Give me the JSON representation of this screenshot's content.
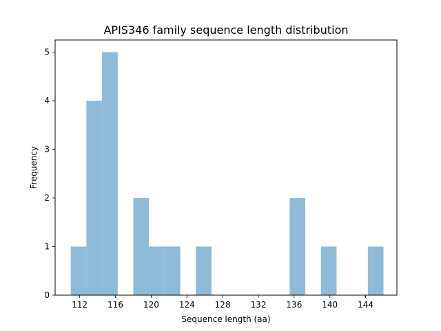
{
  "chart_data": {
    "type": "bar",
    "title": "APIS346 family sequence length distribution",
    "xlabel": "Sequence length (aa)",
    "ylabel": "Frequency",
    "xlim": [
      109.25,
      147.5
    ],
    "ylim": [
      0,
      5.25
    ],
    "xticks": [
      112,
      116,
      120,
      124,
      128,
      132,
      136,
      140,
      144
    ],
    "yticks": [
      0,
      1,
      2,
      3,
      4,
      5
    ],
    "grid": false,
    "bar_color": "#8fbbd9",
    "bins": [
      {
        "x0": 111.0,
        "x1": 112.75,
        "count": 1
      },
      {
        "x0": 112.75,
        "x1": 114.5,
        "count": 4
      },
      {
        "x0": 114.5,
        "x1": 116.25,
        "count": 5
      },
      {
        "x0": 116.25,
        "x1": 118.0,
        "count": 0
      },
      {
        "x0": 118.0,
        "x1": 119.75,
        "count": 2
      },
      {
        "x0": 119.75,
        "x1": 121.5,
        "count": 1
      },
      {
        "x0": 121.5,
        "x1": 123.25,
        "count": 1
      },
      {
        "x0": 123.25,
        "x1": 125.0,
        "count": 0
      },
      {
        "x0": 125.0,
        "x1": 126.75,
        "count": 1
      },
      {
        "x0": 126.75,
        "x1": 128.5,
        "count": 0
      },
      {
        "x0": 128.5,
        "x1": 130.25,
        "count": 0
      },
      {
        "x0": 130.25,
        "x1": 132.0,
        "count": 0
      },
      {
        "x0": 132.0,
        "x1": 133.75,
        "count": 0
      },
      {
        "x0": 133.75,
        "x1": 135.5,
        "count": 0
      },
      {
        "x0": 135.5,
        "x1": 137.25,
        "count": 2
      },
      {
        "x0": 137.25,
        "x1": 139.0,
        "count": 0
      },
      {
        "x0": 139.0,
        "x1": 140.75,
        "count": 1
      },
      {
        "x0": 140.75,
        "x1": 142.5,
        "count": 0
      },
      {
        "x0": 142.5,
        "x1": 144.25,
        "count": 0
      },
      {
        "x0": 144.25,
        "x1": 146.0,
        "count": 1
      }
    ]
  }
}
